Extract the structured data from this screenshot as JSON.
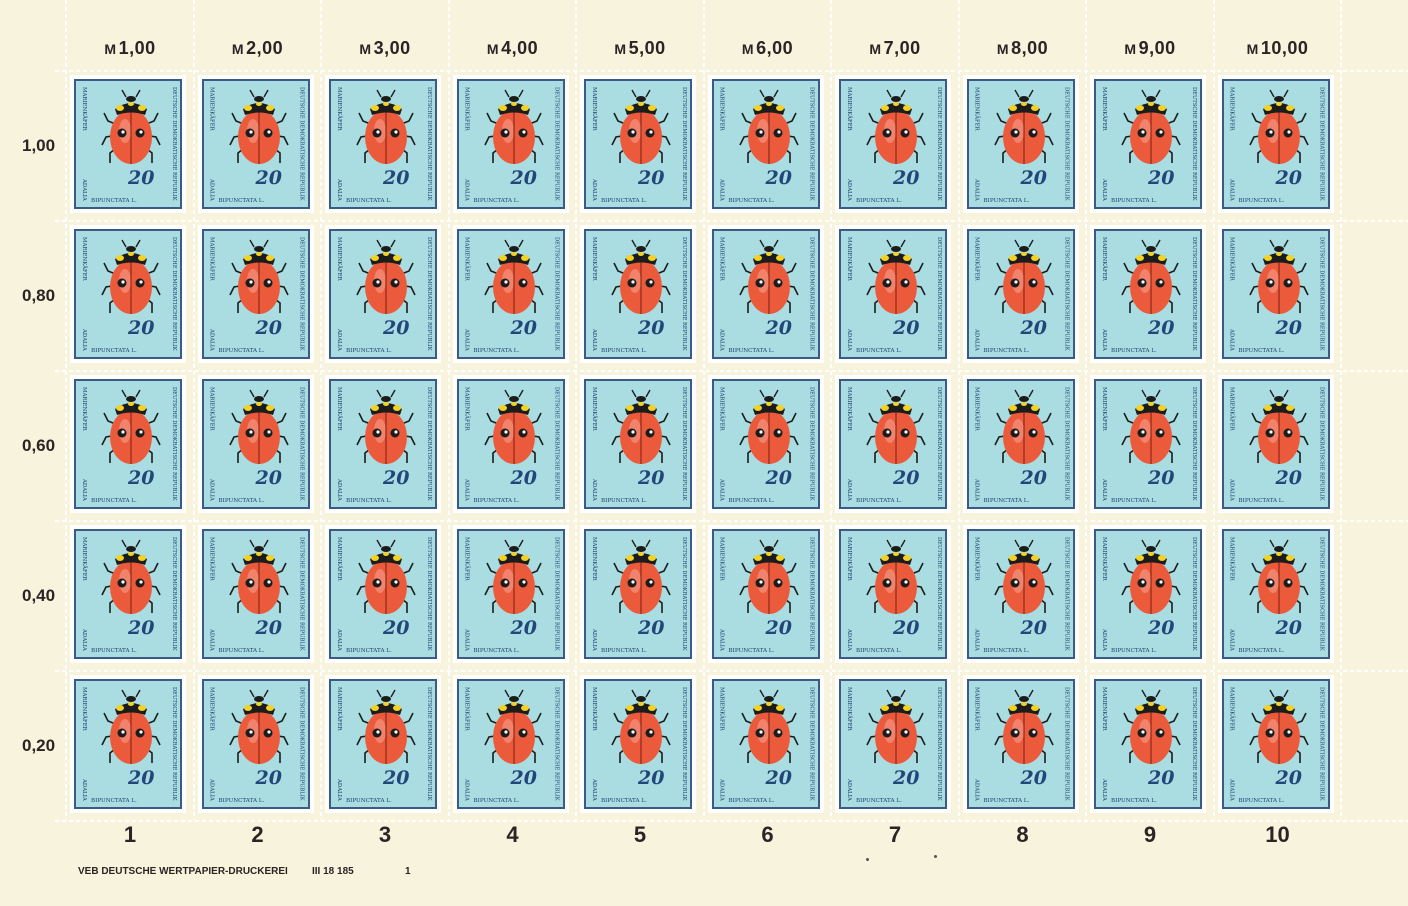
{
  "sheet": {
    "column_values": [
      "1,00",
      "2,00",
      "3,00",
      "4,00",
      "5,00",
      "6,00",
      "7,00",
      "8,00",
      "9,00",
      "10,00"
    ],
    "currency_prefix": "M",
    "row_values": [
      "1,00",
      "0,80",
      "0,60",
      "0,40",
      "0,20"
    ],
    "column_numbers": [
      "1",
      "2",
      "3",
      "4",
      "5",
      "6",
      "7",
      "8",
      "9",
      "10"
    ]
  },
  "stamp": {
    "common_name": "MARIENKÄFER",
    "genus": "ADALIA",
    "species": "BIPUNCTATA L.",
    "country": "DEUTSCHE DEMOKRATISCHE REPUBLIK",
    "denomination": "20",
    "beetle_icon": "ladybug-icon",
    "colors": {
      "background": "#a9dde1",
      "frame": "#3b5a86",
      "beetle_body": "#ec5a3c",
      "beetle_head": "#1c1c1c",
      "beetle_pronotum_spots": "#f2d224"
    }
  },
  "footer": {
    "printer": "VEB DEUTSCHE WERTPAPIER-DRUCKEREI",
    "code": "III 18 185",
    "number": "1"
  },
  "colors": {
    "margin": "#f7f3dc",
    "text": "#2a2424"
  }
}
